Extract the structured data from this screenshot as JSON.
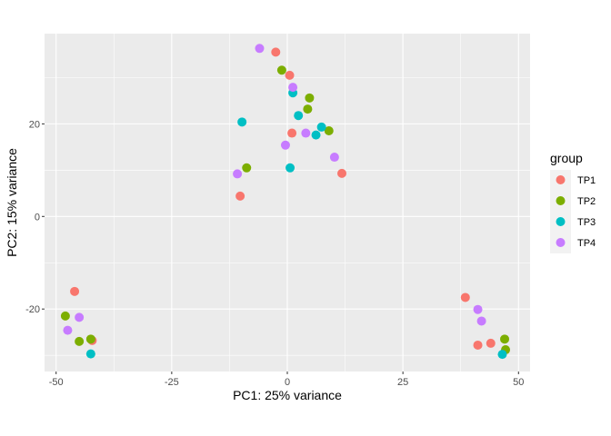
{
  "chart_data": {
    "type": "scatter",
    "xlabel": "PC1: 25% variance",
    "ylabel": "PC2: 15% variance",
    "xlim": [
      -52.5,
      52.5
    ],
    "ylim": [
      -33.5,
      39.5
    ],
    "x_ticks": [
      -50,
      -25,
      0,
      25,
      50
    ],
    "x_tick_labels": [
      "-50",
      "-25",
      "0",
      "25",
      "50"
    ],
    "y_ticks": [
      -20,
      0,
      20
    ],
    "y_tick_labels": [
      "-20",
      "0",
      "20"
    ],
    "grid": true,
    "legend": {
      "title": "group",
      "placement": "right"
    },
    "series": [
      {
        "name": "TP1",
        "color": "#F8766D",
        "points": [
          {
            "x": -2.5,
            "y": 35.5
          },
          {
            "x": 0.5,
            "y": 30.5
          },
          {
            "x": 1.0,
            "y": 18.0
          },
          {
            "x": 11.8,
            "y": 9.3
          },
          {
            "x": -10.2,
            "y": 4.4
          },
          {
            "x": -46.0,
            "y": -16.2
          },
          {
            "x": -42.2,
            "y": -26.8
          },
          {
            "x": 38.5,
            "y": -17.5
          },
          {
            "x": 41.2,
            "y": -27.8
          },
          {
            "x": 44.0,
            "y": -27.4
          }
        ]
      },
      {
        "name": "TP2",
        "color": "#7CAE00",
        "points": [
          {
            "x": -1.2,
            "y": 31.6
          },
          {
            "x": 4.8,
            "y": 25.6
          },
          {
            "x": 4.4,
            "y": 23.2
          },
          {
            "x": 9.0,
            "y": 18.5
          },
          {
            "x": -8.8,
            "y": 10.5
          },
          {
            "x": -48.0,
            "y": -21.5
          },
          {
            "x": -45.0,
            "y": -27.0
          },
          {
            "x": -42.5,
            "y": -26.5
          },
          {
            "x": 47.0,
            "y": -26.5
          },
          {
            "x": 47.2,
            "y": -28.8
          }
        ]
      },
      {
        "name": "TP3",
        "color": "#00BFC4",
        "points": [
          {
            "x": 1.2,
            "y": 26.7
          },
          {
            "x": 2.4,
            "y": 21.8
          },
          {
            "x": -9.8,
            "y": 20.4
          },
          {
            "x": 7.4,
            "y": 19.3
          },
          {
            "x": 6.2,
            "y": 17.6
          },
          {
            "x": 0.6,
            "y": 10.5
          },
          {
            "x": -42.5,
            "y": -29.7
          },
          {
            "x": 46.5,
            "y": -29.8
          }
        ]
      },
      {
        "name": "TP4",
        "color": "#C77CFF",
        "points": [
          {
            "x": -6.0,
            "y": 36.3
          },
          {
            "x": 1.2,
            "y": 27.9
          },
          {
            "x": 4.0,
            "y": 18.0
          },
          {
            "x": -0.4,
            "y": 15.4
          },
          {
            "x": 10.2,
            "y": 12.8
          },
          {
            "x": -10.8,
            "y": 9.2
          },
          {
            "x": -45.0,
            "y": -21.8
          },
          {
            "x": -47.5,
            "y": -24.6
          },
          {
            "x": 41.2,
            "y": -20.1
          },
          {
            "x": 42.0,
            "y": -22.6
          }
        ]
      }
    ]
  }
}
